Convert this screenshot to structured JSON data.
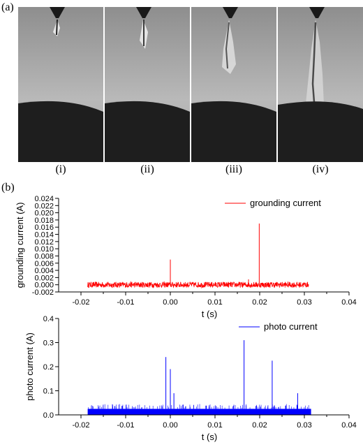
{
  "figure": {
    "panel_a_label": "(a)",
    "panel_b_label": "(b)",
    "frame_captions": [
      "(i)",
      "(ii)",
      "(iii)",
      "(iv)"
    ]
  },
  "chart_data": [
    {
      "type": "line",
      "ylabel": "grounding current (A)",
      "xlabel": "t (s)",
      "xlim": [
        -0.025,
        0.04
      ],
      "ylim": [
        -0.002,
        0.024
      ],
      "x_ticks": [
        "-0.02",
        "-0.01",
        "0.00",
        "0.01",
        "0.02",
        "0.03",
        "0.04"
      ],
      "x_tick_values": [
        -0.02,
        -0.01,
        0.0,
        0.01,
        0.02,
        0.03,
        0.04
      ],
      "y_ticks": [
        "-0.002",
        "0.000",
        "0.002",
        "0.004",
        "0.006",
        "0.008",
        "0.010",
        "0.012",
        "0.014",
        "0.016",
        "0.018",
        "0.020",
        "0.022",
        "0.024"
      ],
      "y_tick_values": [
        -0.002,
        0.0,
        0.002,
        0.004,
        0.006,
        0.008,
        0.01,
        0.012,
        0.014,
        0.016,
        0.018,
        0.02,
        0.022,
        0.024
      ],
      "legend_position": "top-right",
      "color": "#ff0000",
      "series": [
        {
          "name": "grounding current",
          "noise_range": [
            -0.0008,
            0.0008
          ],
          "t_range": [
            -0.0185,
            0.031
          ],
          "spikes": [
            {
              "x": 0.0,
              "y": 0.007
            },
            {
              "x": 0.0199,
              "y": 0.017
            },
            {
              "x": 0.0175,
              "y": 0.0015
            }
          ]
        }
      ]
    },
    {
      "type": "line",
      "ylabel": "photo current (A)",
      "xlabel": "t (s)",
      "xlim": [
        -0.025,
        0.04
      ],
      "ylim": [
        0.0,
        0.4
      ],
      "x_ticks": [
        "-0.02",
        "-0.01",
        "0.00",
        "0.01",
        "0.02",
        "0.03",
        "0.04"
      ],
      "x_tick_values": [
        -0.02,
        -0.01,
        0.0,
        0.01,
        0.02,
        0.03,
        0.04
      ],
      "y_ticks": [
        "0.0",
        "0.1",
        "0.2",
        "0.3",
        "0.4"
      ],
      "y_tick_values": [
        0.0,
        0.1,
        0.2,
        0.3,
        0.4
      ],
      "legend_position": "top-right",
      "color": "#0000ff",
      "series": [
        {
          "name": "photo current",
          "baseline_range": [
            0.0,
            0.025
          ],
          "t_range": [
            -0.0185,
            0.0315
          ],
          "spikes": [
            {
              "x": -0.001,
              "y": 0.24
            },
            {
              "x": 0.0,
              "y": 0.19
            },
            {
              "x": 0.0008,
              "y": 0.09
            },
            {
              "x": 0.0165,
              "y": 0.31
            },
            {
              "x": 0.0228,
              "y": 0.225
            },
            {
              "x": 0.0285,
              "y": 0.09
            }
          ]
        }
      ]
    }
  ]
}
